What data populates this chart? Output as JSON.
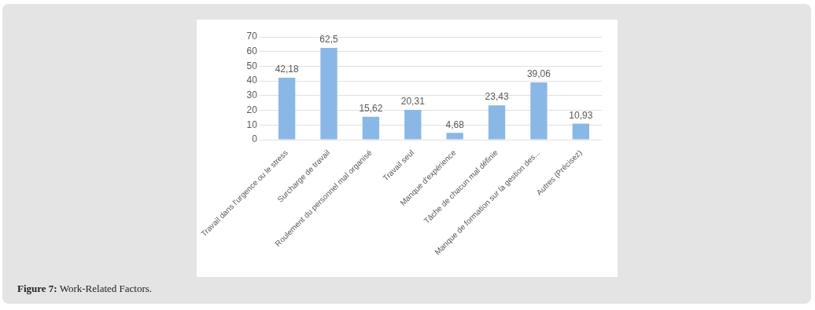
{
  "chart_data": {
    "type": "bar",
    "categories": [
      "Travail dans l'urgence ou le stress",
      "Surcharge de travail",
      "Roulement du personnel mal organisé",
      "Travail seul",
      "Manque d'expérience",
      "Tâche de chacun mal définie",
      "Manque de formation sur la gestion des...",
      "Autres (Précisez)"
    ],
    "values": [
      42.18,
      62.5,
      15.62,
      20.31,
      4.68,
      23.43,
      39.06,
      10.93
    ],
    "value_labels": [
      "42,18",
      "62,5",
      "15,62",
      "20,31",
      "4,68",
      "23,43",
      "39,06",
      "10,93"
    ],
    "color": "#8ab8e6",
    "ylim": [
      0,
      70
    ],
    "yticks": [
      0,
      10,
      20,
      30,
      40,
      50,
      60,
      70
    ],
    "grid": "y",
    "legend": false,
    "annotations": [
      "Figure 7: Work-Related Factors."
    ]
  }
}
